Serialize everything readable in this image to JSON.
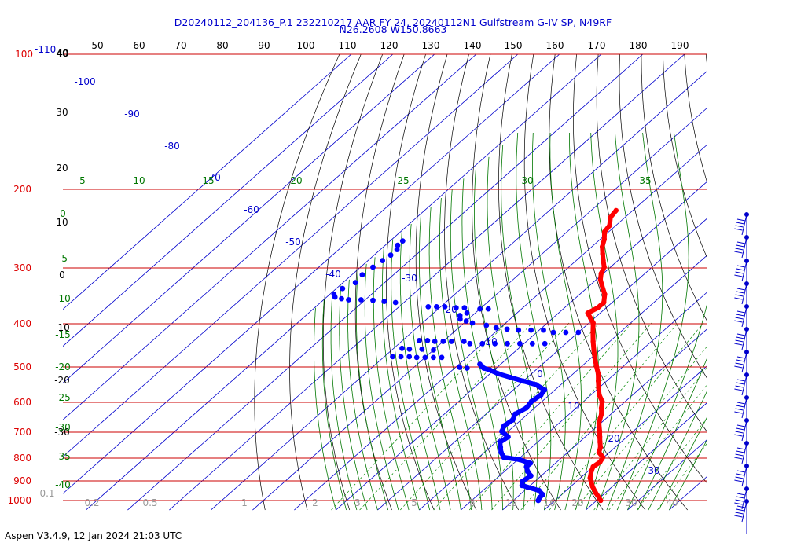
{
  "chart_data": {
    "type": "skew-t",
    "title_line1": "D20240112_204136_P.1 232210217 AAR FY 24, 20240112N1 Gulfstream G-IV SP, N49RF",
    "title_line2": "N26.2608 W150.8663",
    "pressure_levels": [
      100,
      200,
      300,
      400,
      500,
      600,
      700,
      800,
      900,
      1000
    ],
    "pressure_label_extra": "-110",
    "top_temperature_ticks": [
      40,
      50,
      60,
      70,
      80,
      90,
      100,
      110,
      120,
      130,
      140,
      150,
      160,
      170,
      180,
      190
    ],
    "left_temperature_ticks": [
      {
        "label": "40",
        "p": 100
      },
      {
        "label": "30",
        "p": 145
      },
      {
        "label": "20",
        "p": 190
      },
      {
        "label": "10",
        "p": 246
      },
      {
        "label": "0",
        "p": 312
      },
      {
        "label": "-10",
        "p": 410
      },
      {
        "label": "-20",
        "p": 545
      },
      {
        "label": "-30",
        "p": 715
      }
    ],
    "isotherm_labels": [
      {
        "label": "-100",
        "p": 125
      },
      {
        "label": "-90",
        "p": 155
      },
      {
        "label": "-80",
        "p": 188
      },
      {
        "label": "-70",
        "p": 230
      },
      {
        "label": "-60",
        "p": 253
      },
      {
        "label": "-50",
        "p": 290
      },
      {
        "label": "-40",
        "p": 328
      },
      {
        "label": "-30",
        "p": 340
      },
      {
        "label": "-20",
        "p": 390
      },
      {
        "label": "-10",
        "p": 440
      },
      {
        "label": "0",
        "p": 520
      },
      {
        "label": "10",
        "p": 620
      },
      {
        "label": "20",
        "p": 745
      },
      {
        "label": "30",
        "p": 870
      }
    ],
    "dry_adiabat_labels": [
      "0",
      "-5",
      "-10",
      "-15",
      "-20",
      "-25",
      "-30",
      "-35",
      "-40"
    ],
    "moist_adiabat_labels": [
      "5",
      "10",
      "15",
      "20",
      "25",
      "30",
      "35"
    ],
    "mixing_ratio_labels": [
      "0.1",
      "0.2",
      "0.5",
      "1",
      "2",
      "3",
      "5",
      "8",
      "12",
      "16",
      "20",
      "30",
      "40"
    ],
    "temperature_series": {
      "name": "",
      "color": "#ff0000",
      "points": [
        {
          "p": 1000,
          "t": 21.0
        },
        {
          "p": 985,
          "t": 19.8
        },
        {
          "p": 960,
          "t": 17.6
        },
        {
          "p": 930,
          "t": 15.2
        },
        {
          "p": 910,
          "t": 13.8
        },
        {
          "p": 890,
          "t": 12.3
        },
        {
          "p": 860,
          "t": 10.8
        },
        {
          "p": 840,
          "t": 10.0
        },
        {
          "p": 820,
          "t": 10.4
        },
        {
          "p": 800,
          "t": 9.8
        },
        {
          "p": 780,
          "t": 7.5
        },
        {
          "p": 760,
          "t": 6.5
        },
        {
          "p": 740,
          "t": 5.0
        },
        {
          "p": 720,
          "t": 3.5
        },
        {
          "p": 700,
          "t": 2.0
        },
        {
          "p": 670,
          "t": -0.5
        },
        {
          "p": 640,
          "t": -2.3
        },
        {
          "p": 620,
          "t": -4.0
        },
        {
          "p": 600,
          "t": -5.5
        },
        {
          "p": 580,
          "t": -8.0
        },
        {
          "p": 560,
          "t": -10.0
        },
        {
          "p": 540,
          "t": -12.0
        },
        {
          "p": 520,
          "t": -14.0
        },
        {
          "p": 500,
          "t": -16.5
        },
        {
          "p": 480,
          "t": -19.0
        },
        {
          "p": 460,
          "t": -21.5
        },
        {
          "p": 440,
          "t": -24.0
        },
        {
          "p": 420,
          "t": -26.5
        },
        {
          "p": 400,
          "t": -29.0
        },
        {
          "p": 390,
          "t": -31.0
        },
        {
          "p": 380,
          "t": -33.0
        },
        {
          "p": 370,
          "t": -32.0
        },
        {
          "p": 360,
          "t": -32.0
        },
        {
          "p": 345,
          "t": -34.0
        },
        {
          "p": 330,
          "t": -37.0
        },
        {
          "p": 320,
          "t": -39.0
        },
        {
          "p": 310,
          "t": -40.5
        },
        {
          "p": 300,
          "t": -41.5
        },
        {
          "p": 290,
          "t": -43.5
        },
        {
          "p": 280,
          "t": -45.5
        },
        {
          "p": 270,
          "t": -47.5
        },
        {
          "p": 260,
          "t": -49.0
        },
        {
          "p": 250,
          "t": -51.0
        },
        {
          "p": 242,
          "t": -51.5
        },
        {
          "p": 232,
          "t": -53.5
        },
        {
          "p": 224,
          "t": -54.0
        }
      ]
    },
    "dewpoint_series": {
      "name": "",
      "color": "#0000ff",
      "points": [
        {
          "p": 1000,
          "t": 6.0
        },
        {
          "p": 985,
          "t": 5.5
        },
        {
          "p": 970,
          "t": 5.5
        },
        {
          "p": 950,
          "t": 3.5
        },
        {
          "p": 925,
          "t": -2.0
        },
        {
          "p": 905,
          "t": -3.0
        },
        {
          "p": 880,
          "t": -2.5
        },
        {
          "p": 860,
          "t": -4.5
        },
        {
          "p": 840,
          "t": -6.0
        },
        {
          "p": 825,
          "t": -6.0
        },
        {
          "p": 810,
          "t": -9.5
        },
        {
          "p": 800,
          "t": -14.0
        },
        {
          "p": 780,
          "t": -16.0
        },
        {
          "p": 760,
          "t": -17.5
        },
        {
          "p": 740,
          "t": -19.0
        },
        {
          "p": 720,
          "t": -18.5
        },
        {
          "p": 700,
          "t": -21.5
        },
        {
          "p": 680,
          "t": -22.5
        },
        {
          "p": 660,
          "t": -22.0
        },
        {
          "p": 640,
          "t": -23.0
        },
        {
          "p": 620,
          "t": -22.0
        },
        {
          "p": 600,
          "t": -22.5
        },
        {
          "p": 580,
          "t": -22.0
        },
        {
          "p": 565,
          "t": -22.5
        },
        {
          "p": 550,
          "t": -26.0
        },
        {
          "p": 540,
          "t": -30.0
        },
        {
          "p": 530,
          "t": -34.0
        },
        {
          "p": 520,
          "t": -38.0
        },
        {
          "p": 510,
          "t": -41.0
        },
        {
          "p": 505,
          "t": -43.0
        },
        {
          "p": 500,
          "t": -44.0
        },
        {
          "p": 495,
          "t": -45.0
        }
      ],
      "scatter_points": [
        {
          "p": 505,
          "t": -47.0
        },
        {
          "p": 503,
          "t": -49.0
        },
        {
          "p": 478,
          "t": -56.0
        },
        {
          "p": 478,
          "t": -58.0
        },
        {
          "p": 478,
          "t": -60.0
        },
        {
          "p": 478,
          "t": -62.0
        },
        {
          "p": 476,
          "t": -64.0
        },
        {
          "p": 476,
          "t": -66.0
        },
        {
          "p": 476,
          "t": -68.0
        },
        {
          "p": 460,
          "t": -60.0
        },
        {
          "p": 458,
          "t": -63.0
        },
        {
          "p": 458,
          "t": -66.0
        },
        {
          "p": 456,
          "t": -68.0
        },
        {
          "p": 440,
          "t": -55.0
        },
        {
          "p": 440,
          "t": -58.0
        },
        {
          "p": 440,
          "t": -60.0
        },
        {
          "p": 440,
          "t": -62.0
        },
        {
          "p": 438,
          "t": -64.0
        },
        {
          "p": 438,
          "t": -66.0
        },
        {
          "p": 445,
          "t": -53.0
        },
        {
          "p": 445,
          "t": -50.0
        },
        {
          "p": 445,
          "t": -47.0
        },
        {
          "p": 445,
          "t": -44.0
        },
        {
          "p": 445,
          "t": -41.0
        },
        {
          "p": 445,
          "t": -38.0
        },
        {
          "p": 445,
          "t": -35.0
        },
        {
          "p": 420,
          "t": -30.0
        },
        {
          "p": 420,
          "t": -33.0
        },
        {
          "p": 420,
          "t": -36.0
        },
        {
          "p": 415,
          "t": -39.0
        },
        {
          "p": 415,
          "t": -42.0
        },
        {
          "p": 415,
          "t": -45.0
        },
        {
          "p": 413,
          "t": -48.0
        },
        {
          "p": 410,
          "t": -51.0
        },
        {
          "p": 405,
          "t": -54.0
        },
        {
          "p": 400,
          "t": -58.0
        },
        {
          "p": 396,
          "t": -60.0
        },
        {
          "p": 392,
          "t": -62.0
        },
        {
          "p": 385,
          "t": -63.0
        },
        {
          "p": 380,
          "t": -62.0
        },
        {
          "p": 372,
          "t": -58.0
        },
        {
          "p": 372,
          "t": -60.0
        },
        {
          "p": 370,
          "t": -64.0
        },
        {
          "p": 370,
          "t": -66.0
        },
        {
          "p": 368,
          "t": -69.0
        },
        {
          "p": 368,
          "t": -71.0
        },
        {
          "p": 368,
          "t": -73.0
        },
        {
          "p": 360,
          "t": -82.0
        },
        {
          "p": 358,
          "t": -85.0
        },
        {
          "p": 356,
          "t": -88.0
        },
        {
          "p": 355,
          "t": -91.0
        },
        {
          "p": 355,
          "t": -94.0
        },
        {
          "p": 353,
          "t": -96.0
        },
        {
          "p": 350,
          "t": -98.0
        },
        {
          "p": 345,
          "t": -99.0
        },
        {
          "p": 335,
          "t": -98.5
        },
        {
          "p": 325,
          "t": -97.0
        },
        {
          "p": 312,
          "t": -97.5
        },
        {
          "p": 300,
          "t": -97.0
        },
        {
          "p": 290,
          "t": -96.5
        },
        {
          "p": 282,
          "t": -96.0
        },
        {
          "p": 274,
          "t": -96.0
        },
        {
          "p": 268,
          "t": -97.0
        },
        {
          "p": 262,
          "t": -97.0
        }
      ]
    },
    "wind_barb_levels": [
      250,
      280,
      310,
      340,
      370,
      400,
      440,
      480,
      520,
      560,
      600,
      640,
      680,
      720,
      760,
      800,
      850,
      900,
      940,
      980
    ],
    "colors": {
      "isobar": "#cc0000",
      "isotherm": "#0000cc",
      "dry_adiabat": "#000000",
      "moist_adiabat": "#007700",
      "mixing_ratio": "#008800",
      "pressure_label": "#dd0000",
      "title": "#0000cc",
      "mixing_label": "#999999"
    }
  },
  "footer": "Aspen V3.4.9, 12 Jan 2024  21:03 UTC"
}
